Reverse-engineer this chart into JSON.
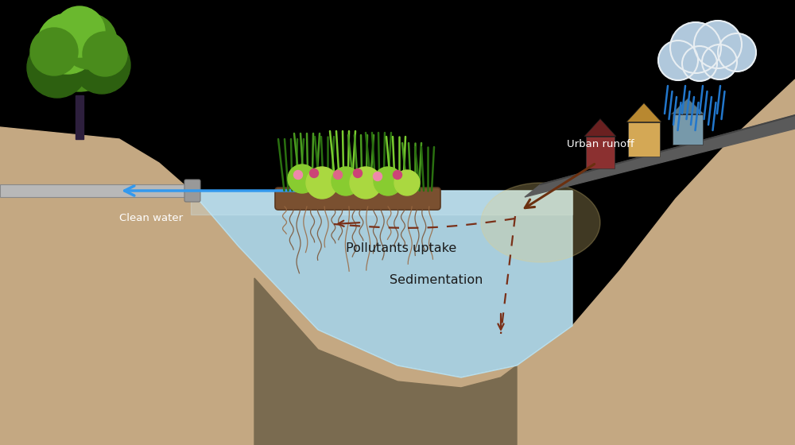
{
  "bg_color": "#000000",
  "ground_color": "#c4a882",
  "ground_dark": "#9c7a55",
  "water_color": "#b8e0f0",
  "water_light": "#d0ecf8",
  "sediment_color": "#7a6b50",
  "pipe_color": "#b8b8b8",
  "pipe_cap_color": "#999999",
  "tree_trunk_color": "#2d1f3d",
  "tree_green_dark": "#2d6010",
  "tree_green_mid": "#4a8c1c",
  "tree_green_light": "#6ab82e",
  "arrow_blue": "#3399ee",
  "arrow_brown_solid": "#6b3010",
  "dashed_color": "#7a3018",
  "text_color": "#1a1a1a",
  "cloud_color": "#b0c8dc",
  "cloud_outline": "#e8eef2",
  "rain_color": "#2277cc",
  "house1_wall": "#8b3030",
  "house1_roof": "#6a2020",
  "house2_wall": "#d4a855",
  "house2_roof": "#b88830",
  "house3_wall": "#7799aa",
  "house3_roof": "#557788",
  "road_color": "#5a5a5a",
  "road_edge": "#444444",
  "mat_color": "#7a5030",
  "mat_dark": "#5a3820",
  "root_color": "#8a6040",
  "plant_dark": "#2a7010",
  "plant_mid": "#4a9a20",
  "plant_light": "#7acc30",
  "flower_pink": "#cc5577",
  "flower_yellow": "#ccaa20",
  "glow_color": "#e8d080",
  "label_pollutants": "Pollutants uptake",
  "label_sedimentation": "Sedimentation",
  "label_clean_water": "Clean water",
  "label_urban_runoff": "Urban runoff"
}
